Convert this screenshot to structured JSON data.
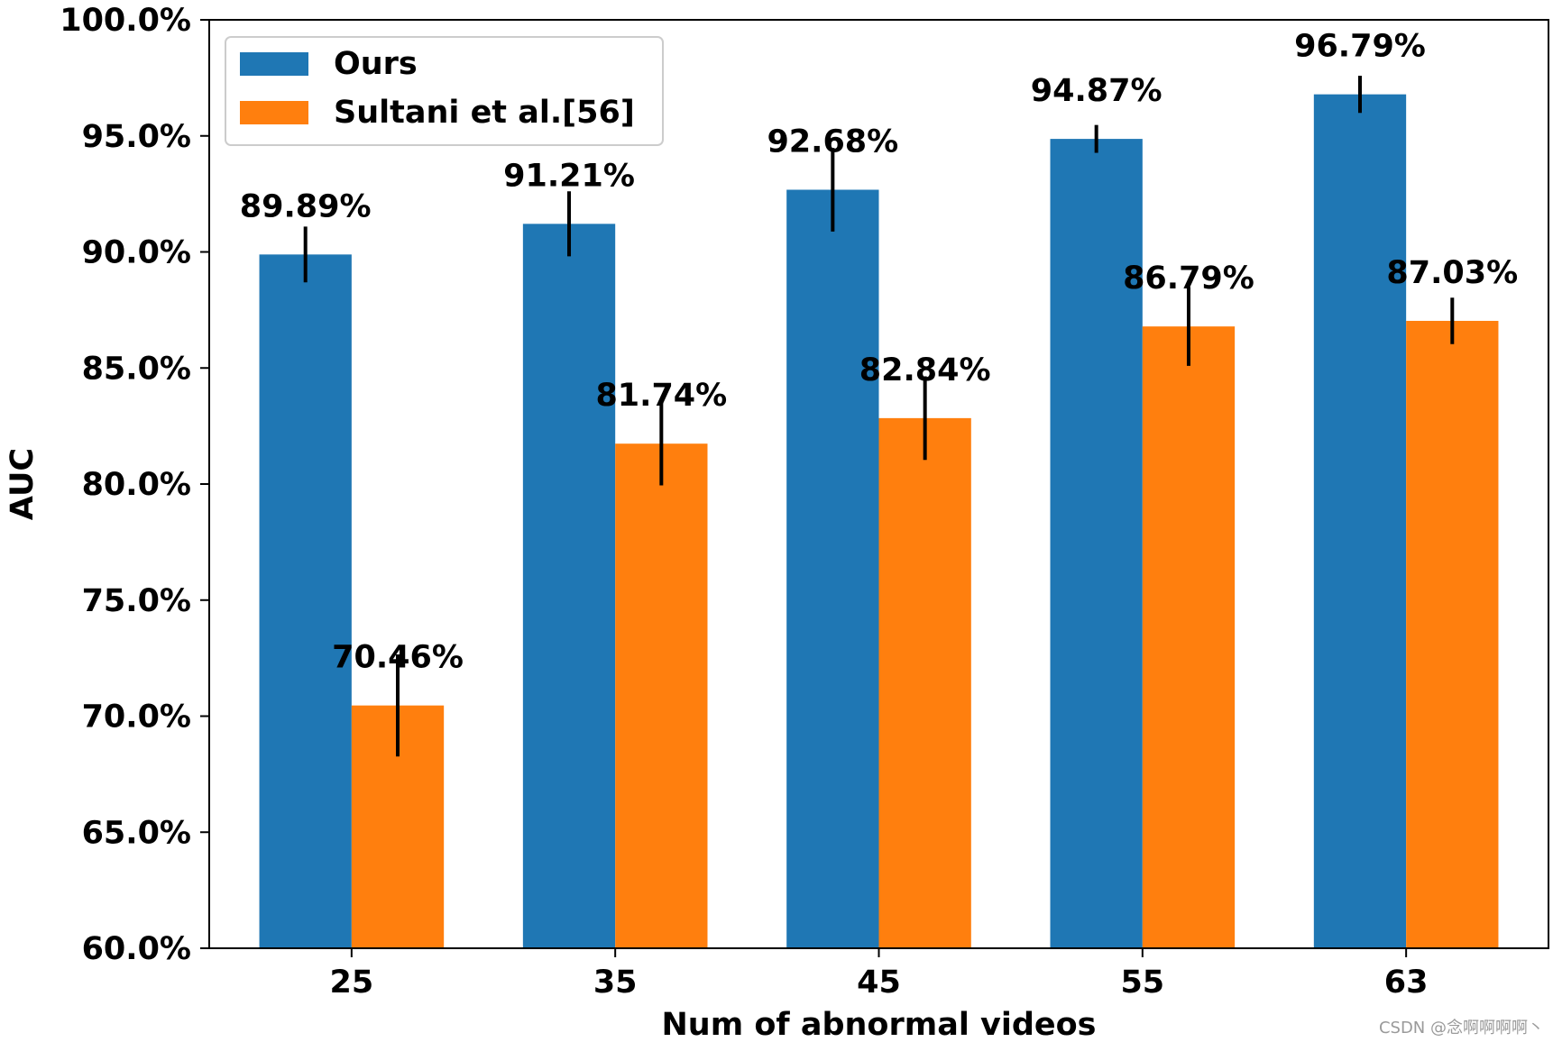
{
  "chart_data": {
    "type": "bar",
    "title": "",
    "xlabel": "Num of abnormal videos",
    "ylabel": "AUC",
    "categories": [
      "25",
      "35",
      "45",
      "55",
      "63"
    ],
    "ylim": [
      60,
      100
    ],
    "yticks": [
      60,
      65,
      70,
      75,
      80,
      85,
      90,
      95,
      100
    ],
    "ytick_labels": [
      "60.0%",
      "65.0%",
      "70.0%",
      "75.0%",
      "80.0%",
      "85.0%",
      "90.0%",
      "95.0%",
      "100.0%"
    ],
    "grid": false,
    "legend_position": "top-left",
    "series": [
      {
        "name": "Ours",
        "color": "#1f77b4",
        "values": [
          89.89,
          91.21,
          92.68,
          94.87,
          96.79
        ],
        "labels": [
          "89.89%",
          "91.21%",
          "92.68%",
          "94.87%",
          "96.79%"
        ],
        "error": [
          1.2,
          1.4,
          1.8,
          0.6,
          0.8
        ]
      },
      {
        "name": "Sultani et al.[56]",
        "color": "#ff7f0e",
        "values": [
          70.46,
          81.74,
          82.84,
          86.79,
          87.03
        ],
        "labels": [
          "70.46%",
          "81.74%",
          "82.84%",
          "86.79%",
          "87.03%"
        ],
        "error": [
          2.2,
          1.8,
          1.8,
          1.7,
          1.0
        ]
      }
    ]
  },
  "watermark": "CSDN @念啊啊啊啊丶"
}
